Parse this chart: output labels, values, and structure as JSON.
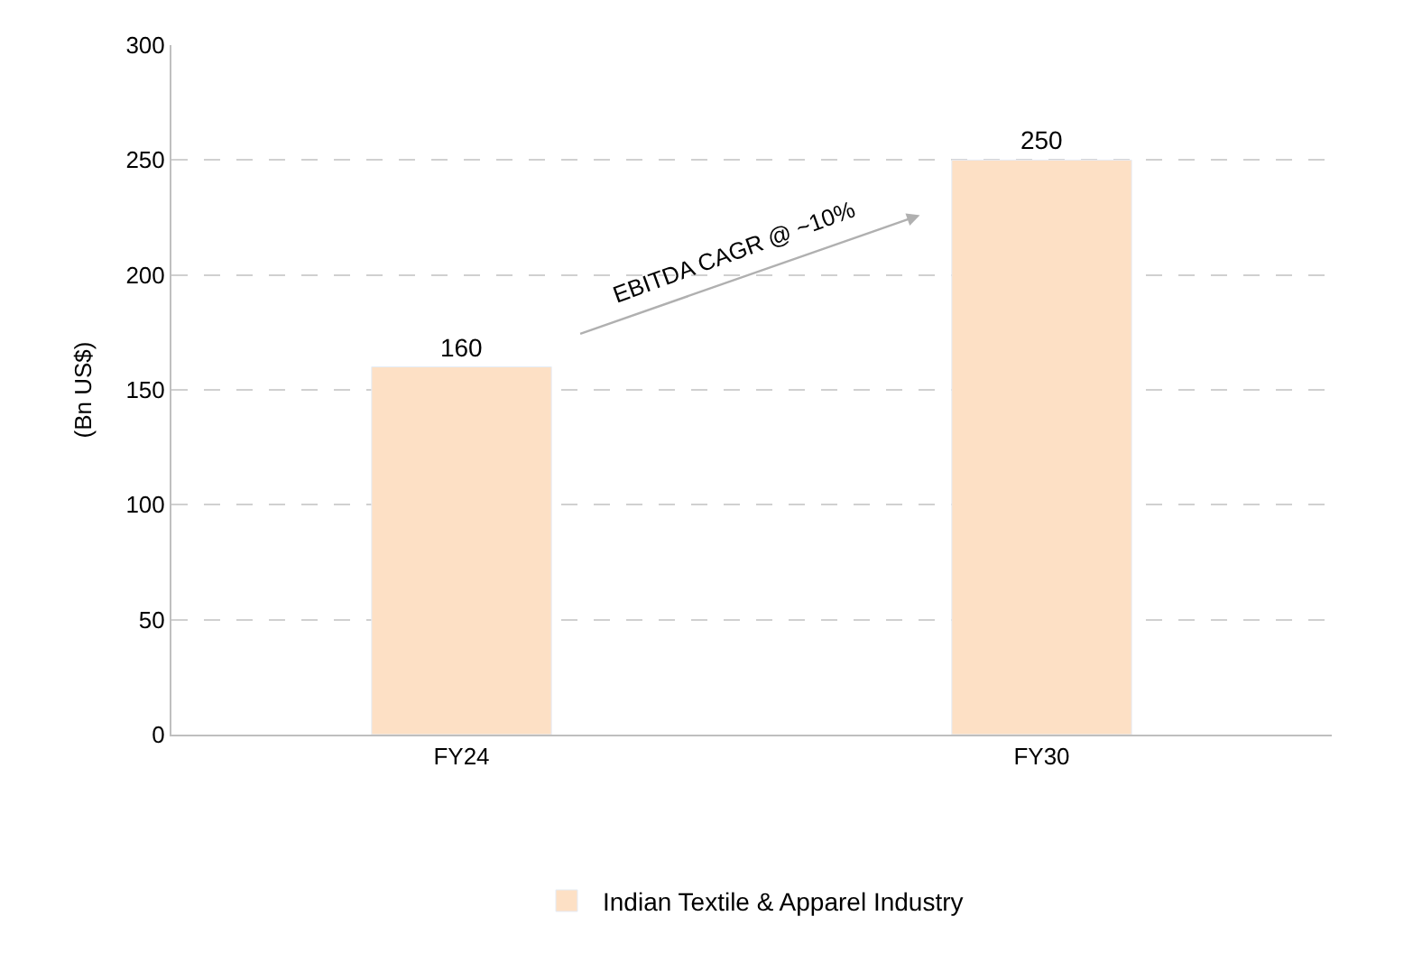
{
  "chart_data": {
    "type": "bar",
    "ylabel": "(Bn US$)",
    "categories": [
      "FY24",
      "FY30"
    ],
    "series": [
      {
        "name": "Indian Textile & Apparel Industry",
        "color": "#fde0c5",
        "values": [
          160,
          250
        ]
      }
    ],
    "ylim": [
      0,
      300
    ],
    "yticks": [
      0,
      50,
      100,
      150,
      200,
      250,
      300
    ],
    "grid": "y",
    "legend": "bottom",
    "data_labels": true,
    "annotations": [
      "EBITDA CAGR @ ~10%"
    ]
  }
}
